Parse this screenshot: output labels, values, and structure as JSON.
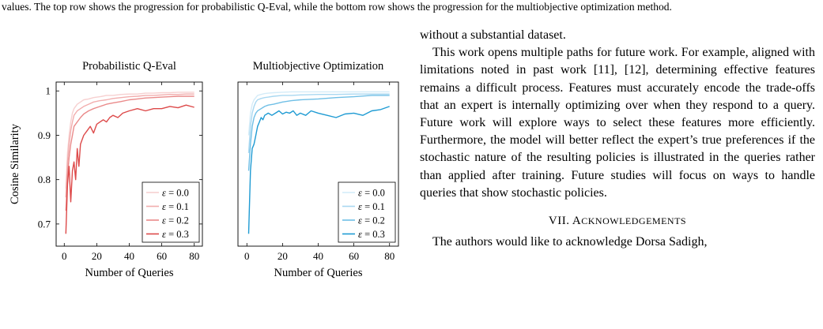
{
  "caption_tail": "values. The top row shows the progression for probabilistic Q-Eval, while the bottom row shows the progression for the multiobjective optimization method.",
  "right_column": {
    "p0": "without a substantial dataset.",
    "p1": "This work opens multiple paths for future work. For example, aligned with limitations noted in past work [11], [12], determining effective features remains a difficult process. Features must accurately encode the trade-offs that an expert is internally optimizing over when they respond to a query. Future work will explore ways to select these features more efficiently. Furthermore, the model will better reflect the expert’s true preferences if the stochastic nature of the resulting policies is illustrated in the queries rather than applied after training. Future studies will focus on ways to handle queries that show stochastic policies.",
    "section_number": "VII.",
    "section_title": "Acknowledgements",
    "p2": "The authors would like to acknowledge Dorsa Sadigh,"
  },
  "chart_data": [
    {
      "type": "line",
      "title": "Probabilistic Q-Eval",
      "xlabel": "Number of Queries",
      "ylabel": "Cosine Similarity",
      "xlim": [
        -5,
        85
      ],
      "ylim": [
        0.65,
        1.02
      ],
      "xticks": [
        0,
        20,
        40,
        60,
        80
      ],
      "yticks": [
        0.7,
        0.8,
        0.9,
        1
      ],
      "ytick_labels": [
        "0.7",
        "0.8",
        "0.9",
        "1"
      ],
      "grid": false,
      "legend": "bottom-right",
      "series": [
        {
          "name": "ε = 0.0",
          "color": "#f7d0d0",
          "x": [
            1,
            2,
            3,
            4,
            5,
            6,
            8,
            10,
            12,
            15,
            18,
            22,
            26,
            30,
            35,
            40,
            45,
            50,
            55,
            60,
            65,
            70,
            75,
            80
          ],
          "y": [
            0.78,
            0.86,
            0.9,
            0.93,
            0.95,
            0.96,
            0.97,
            0.975,
            0.98,
            0.982,
            0.985,
            0.987,
            0.99,
            0.99,
            0.992,
            0.993,
            0.993,
            0.995,
            0.995,
            0.996,
            0.996,
            0.997,
            0.997,
            0.997
          ]
        },
        {
          "name": "ε = 0.1",
          "color": "#f2aeae",
          "x": [
            1,
            2,
            3,
            4,
            5,
            6,
            8,
            10,
            12,
            15,
            18,
            22,
            26,
            30,
            35,
            40,
            45,
            50,
            55,
            60,
            65,
            70,
            75,
            80
          ],
          "y": [
            0.76,
            0.84,
            0.88,
            0.91,
            0.93,
            0.945,
            0.955,
            0.96,
            0.965,
            0.97,
            0.975,
            0.978,
            0.98,
            0.983,
            0.985,
            0.987,
            0.988,
            0.99,
            0.99,
            0.991,
            0.992,
            0.992,
            0.993,
            0.993
          ]
        },
        {
          "name": "ε = 0.2",
          "color": "#ea8a8a",
          "x": [
            1,
            2,
            3,
            4,
            5,
            6,
            8,
            10,
            12,
            15,
            18,
            22,
            26,
            30,
            35,
            40,
            45,
            50,
            55,
            60,
            65,
            70,
            75,
            80
          ],
          "y": [
            0.73,
            0.81,
            0.85,
            0.88,
            0.9,
            0.92,
            0.93,
            0.94,
            0.948,
            0.955,
            0.96,
            0.965,
            0.97,
            0.973,
            0.976,
            0.98,
            0.982,
            0.984,
            0.985,
            0.986,
            0.987,
            0.988,
            0.988,
            0.988
          ]
        },
        {
          "name": "ε = 0.3",
          "color": "#dd4a4a",
          "x": [
            1,
            2,
            3,
            4,
            5,
            6,
            7,
            8,
            9,
            10,
            12,
            14,
            16,
            18,
            20,
            22,
            24,
            26,
            28,
            30,
            33,
            36,
            40,
            45,
            50,
            55,
            60,
            65,
            70,
            75,
            80
          ],
          "y": [
            0.678,
            0.79,
            0.83,
            0.75,
            0.82,
            0.84,
            0.8,
            0.87,
            0.83,
            0.88,
            0.9,
            0.91,
            0.92,
            0.905,
            0.925,
            0.93,
            0.935,
            0.93,
            0.94,
            0.945,
            0.94,
            0.95,
            0.955,
            0.96,
            0.955,
            0.96,
            0.96,
            0.965,
            0.962,
            0.968,
            0.963
          ]
        }
      ]
    },
    {
      "type": "line",
      "title": "Multiobjective Optimization",
      "xlabel": "Number of Queries",
      "ylabel": "",
      "xlim": [
        -5,
        85
      ],
      "ylim": [
        0.65,
        1.02
      ],
      "xticks": [
        0,
        20,
        40,
        60,
        80
      ],
      "grid": false,
      "legend": "bottom-right",
      "series": [
        {
          "name": "ε = 0.0",
          "color": "#d4ecf8",
          "x": [
            1,
            2,
            3,
            4,
            5,
            6,
            8,
            10,
            12,
            15,
            20,
            25,
            30,
            40,
            50,
            60,
            70,
            80
          ],
          "y": [
            0.9,
            0.95,
            0.97,
            0.98,
            0.985,
            0.99,
            0.992,
            0.994,
            0.995,
            0.996,
            0.997,
            0.998,
            0.998,
            0.998,
            0.998,
            0.998,
            0.998,
            0.998
          ]
        },
        {
          "name": "ε = 0.1",
          "color": "#a9d8f1",
          "x": [
            1,
            2,
            3,
            4,
            5,
            6,
            8,
            10,
            12,
            15,
            20,
            25,
            30,
            40,
            50,
            60,
            70,
            80
          ],
          "y": [
            0.86,
            0.92,
            0.95,
            0.965,
            0.975,
            0.98,
            0.983,
            0.985,
            0.986,
            0.988,
            0.99,
            0.99,
            0.991,
            0.992,
            0.992,
            0.993,
            0.993,
            0.993
          ]
        },
        {
          "name": "ε = 0.2",
          "color": "#6fbfe6",
          "x": [
            1,
            2,
            3,
            4,
            5,
            6,
            8,
            10,
            12,
            15,
            20,
            25,
            30,
            40,
            50,
            60,
            70,
            80
          ],
          "y": [
            0.82,
            0.88,
            0.92,
            0.94,
            0.95,
            0.955,
            0.96,
            0.965,
            0.968,
            0.97,
            0.975,
            0.978,
            0.98,
            0.982,
            0.985,
            0.987,
            0.99,
            0.99
          ]
        },
        {
          "name": "ε = 0.3",
          "color": "#1f9bd3",
          "x": [
            1,
            2,
            3,
            4,
            5,
            6,
            7,
            8,
            9,
            10,
            12,
            14,
            16,
            18,
            20,
            22,
            24,
            26,
            28,
            30,
            33,
            36,
            40,
            45,
            50,
            55,
            60,
            65,
            70,
            75,
            80
          ],
          "y": [
            0.678,
            0.82,
            0.87,
            0.88,
            0.9,
            0.92,
            0.93,
            0.94,
            0.935,
            0.945,
            0.95,
            0.945,
            0.95,
            0.955,
            0.948,
            0.952,
            0.95,
            0.955,
            0.945,
            0.95,
            0.945,
            0.955,
            0.95,
            0.945,
            0.94,
            0.948,
            0.95,
            0.945,
            0.955,
            0.958,
            0.965
          ]
        }
      ]
    }
  ]
}
